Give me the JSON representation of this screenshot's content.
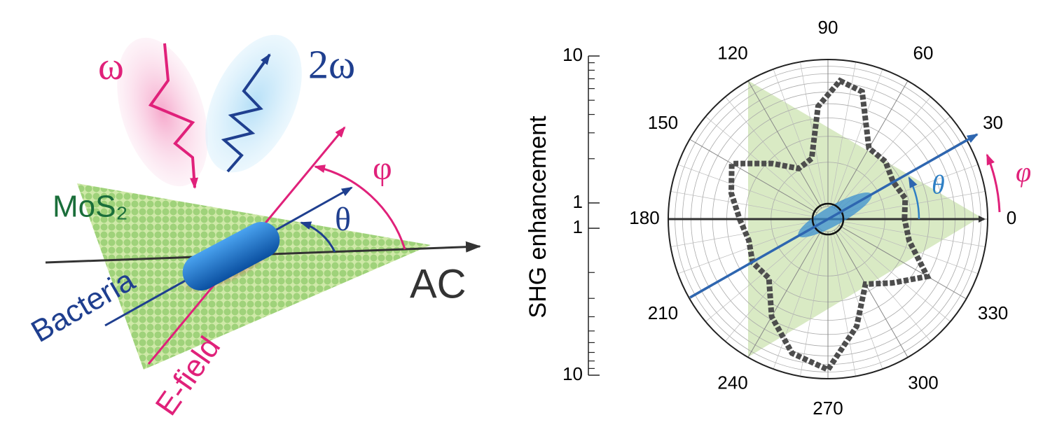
{
  "illustration": {
    "omega": "ω",
    "two_omega": "2ω",
    "material": "MoS₂",
    "bacteria": "Bacteria",
    "efield": "E-field",
    "axis": "AC",
    "phi": "φ",
    "theta": "θ"
  },
  "chart_data": {
    "type": "polar-scatter",
    "y_label": "SHG enhancement",
    "x": [
      0,
      15,
      30,
      45,
      60,
      75,
      85,
      95,
      105,
      120,
      135,
      150,
      165,
      180,
      195,
      210,
      225,
      240,
      255,
      270,
      285,
      300,
      315,
      330,
      345
    ],
    "values": [
      2.72,
      2.87,
      2.66,
      2.93,
      2.96,
      6.48,
      7.22,
      4.83,
      2.19,
      2.05,
      2.81,
      4.67,
      3.93,
      3.27,
      2.96,
      3.2,
      3.03,
      4.78,
      7.22,
      8.68,
      4.67,
      2.66,
      3.38,
      4.94,
      3.06
    ],
    "color": "#4d4d4d",
    "rscale": "log",
    "rlim": [
      0.82,
      10
    ],
    "rticks": [
      1,
      10
    ],
    "rminor": [
      2,
      3,
      4,
      5,
      6,
      7,
      8,
      9
    ],
    "thetaticks": [
      0,
      30,
      60,
      90,
      120,
      150,
      180,
      210,
      240,
      270,
      300,
      330
    ],
    "theta_grid_step": 10,
    "annotations": {
      "theta": "θ",
      "phi": "φ"
    }
  }
}
